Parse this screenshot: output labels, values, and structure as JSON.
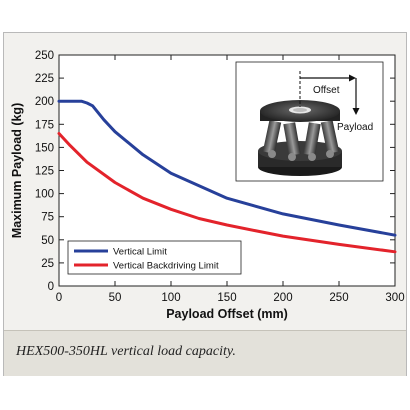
{
  "chart_data": {
    "type": "line",
    "xlabel": "Payload Offset (mm)",
    "ylabel": "Maximum Payload (kg)",
    "xlim": [
      0,
      300
    ],
    "ylim": [
      0,
      250
    ],
    "xticks": [
      0,
      50,
      100,
      150,
      200,
      250,
      300
    ],
    "yticks": [
      0,
      25,
      50,
      75,
      100,
      125,
      150,
      175,
      200,
      225,
      250
    ],
    "grid": false,
    "legend_position": "bottom-left",
    "series": [
      {
        "name": "Vertical Limit",
        "color": "#27409a",
        "x": [
          0,
          10,
          20,
          25,
          30,
          40,
          50,
          75,
          100,
          150,
          200,
          250,
          300
        ],
        "y": [
          200,
          200,
          200,
          198,
          195,
          180,
          167,
          142,
          122,
          95,
          78,
          66,
          55
        ]
      },
      {
        "name": "Vertical Backdriving Limit",
        "color": "#e3232b",
        "x": [
          0,
          10,
          25,
          50,
          75,
          100,
          125,
          150,
          175,
          200,
          250,
          300
        ],
        "y": [
          165,
          152,
          134,
          112,
          95,
          83,
          73,
          66,
          60,
          54,
          45,
          37
        ]
      }
    ],
    "inset": {
      "offset_label": "Offset",
      "payload_label": "Payload"
    }
  },
  "caption": "HEX500-350HL vertical load capacity."
}
